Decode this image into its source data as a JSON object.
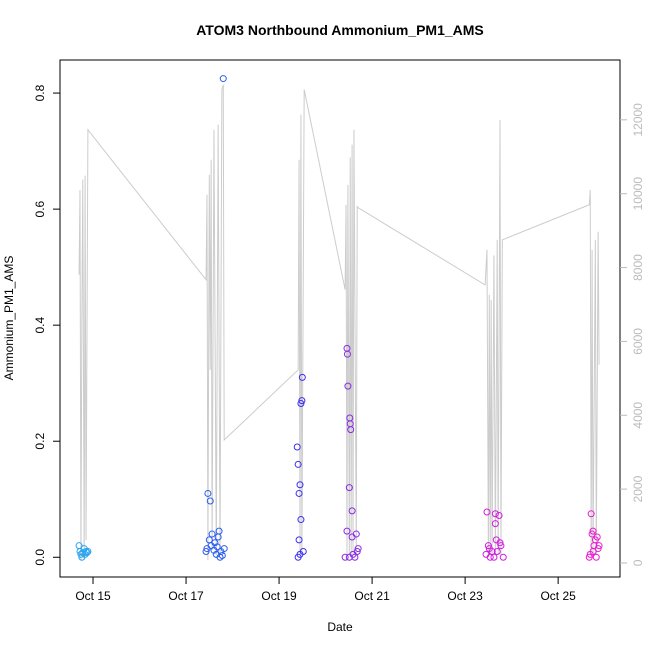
{
  "chart_data": {
    "type": "scatter",
    "title": "ATOM3 Northbound Ammonium_PM1_AMS",
    "xlabel": "Date",
    "ylabel": "Ammonium_PM1_AMS",
    "xlim": [
      14.29,
      26.33
    ],
    "xticks": [
      {
        "value": 15,
        "label": "Oct 15"
      },
      {
        "value": 17,
        "label": "Oct 17"
      },
      {
        "value": 19,
        "label": "Oct 19"
      },
      {
        "value": 21,
        "label": "Oct 21"
      },
      {
        "value": 23,
        "label": "Oct 23"
      },
      {
        "value": 25,
        "label": "Oct 25"
      }
    ],
    "ylim": [
      -0.034,
      0.857
    ],
    "yticks": [
      {
        "value": 0,
        "label": "0.0"
      },
      0.2,
      0.4,
      0.6,
      0.8
    ],
    "y2lim": [
      -380,
      13620
    ],
    "y2ticks": [
      0,
      2000,
      4000,
      6000,
      8000,
      10000,
      12000
    ],
    "y2color": "#bbbbbb",
    "series": [
      {
        "color": "#29a3f0",
        "x": [
          14.7,
          14.72,
          14.74,
          14.76,
          14.78,
          14.81,
          14.83,
          14.85,
          14.87,
          14.89
        ],
        "values": [
          0.02,
          0.01,
          0.005,
          0.0,
          0.008,
          0.015,
          0.005,
          0.01,
          0.008,
          0.01
        ]
      },
      {
        "color": "#2b5cf0",
        "x": [
          17.47,
          17.52,
          17.8,
          17.43,
          17.45,
          17.5,
          17.54,
          17.56,
          17.6,
          17.62,
          17.65,
          17.67,
          17.69,
          17.71,
          17.73,
          17.75,
          17.78,
          17.82
        ],
        "values": [
          0.11,
          0.097,
          0.825,
          0.01,
          0.015,
          0.03,
          0.02,
          0.04,
          0.012,
          0.025,
          0.005,
          0.018,
          0.035,
          0.045,
          0.0,
          0.01,
          0.003,
          0.015
        ]
      },
      {
        "color": "#3b2ff0",
        "x": [
          19.39,
          19.41,
          19.43,
          19.45,
          19.47,
          19.49,
          19.5,
          19.47,
          19.43,
          19.41,
          19.45,
          19.52
        ],
        "values": [
          0.19,
          0.16,
          0.11,
          0.125,
          0.265,
          0.27,
          0.31,
          0.065,
          0.03,
          0.0,
          0.005,
          0.01
        ]
      },
      {
        "color": "#8a2be2",
        "x": [
          20.46,
          20.47,
          20.48,
          20.52,
          20.53,
          20.54,
          20.51,
          20.57,
          20.46,
          20.57,
          20.66,
          20.42,
          20.51,
          20.59,
          20.68,
          20.7,
          20.63
        ],
        "values": [
          0.36,
          0.35,
          0.295,
          0.24,
          0.23,
          0.22,
          0.12,
          0.08,
          0.045,
          0.035,
          0.04,
          0.0,
          0.0,
          0.005,
          0.01,
          0.015,
          0.0
        ]
      },
      {
        "color": "#d21ee0",
        "x": [
          23.47,
          23.65,
          23.73,
          23.65,
          23.67,
          23.75,
          23.77,
          23.52,
          23.58,
          23.45,
          23.54,
          23.62,
          23.69,
          23.82,
          23.5
        ],
        "values": [
          0.078,
          0.075,
          0.072,
          0.058,
          0.03,
          0.025,
          0.02,
          0.015,
          0.01,
          0.005,
          0.0,
          0.0,
          0.01,
          0.0,
          0.02
        ]
      },
      {
        "color": "#e81ed0",
        "x": [
          25.71,
          25.75,
          25.73,
          25.84,
          25.8,
          25.77,
          25.86,
          25.75,
          25.69,
          25.67,
          25.82,
          25.88
        ],
        "values": [
          0.075,
          0.045,
          0.04,
          0.035,
          0.03,
          0.02,
          0.015,
          0.01,
          0.005,
          0.0,
          0.0,
          0.02
        ]
      },
      {
        "type": "line",
        "axis": "y2",
        "color": "#cccccc",
        "x": [
          14.7,
          14.72,
          14.74,
          14.76,
          14.78,
          14.81,
          14.83,
          14.85,
          14.89,
          17.43,
          17.45,
          17.47,
          17.5,
          17.52,
          17.54,
          17.56,
          17.6,
          17.65,
          17.69,
          17.73,
          17.77,
          17.8,
          17.82,
          19.41,
          19.43,
          19.45,
          19.47,
          19.49,
          19.54,
          20.42,
          20.44,
          20.46,
          20.48,
          20.51,
          20.53,
          20.55,
          20.57,
          20.59,
          20.61,
          20.66,
          20.68,
          20.7,
          23.43,
          23.47,
          23.5,
          23.52,
          23.54,
          23.56,
          23.58,
          23.62,
          23.65,
          23.69,
          23.71,
          23.75,
          23.77,
          23.8,
          25.67,
          25.69,
          25.71,
          25.73,
          25.75,
          25.8,
          25.82,
          25.86,
          25.88
        ],
        "values": [
          7800,
          10100,
          80,
          6580,
          10380,
          80,
          10490,
          620,
          11730,
          7670,
          9970,
          80,
          10510,
          5230,
          10920,
          350,
          11730,
          220,
          11870,
          220,
          12820,
          12950,
          3330,
          5230,
          10920,
          220,
          12140,
          220,
          12820,
          7400,
          9700,
          220,
          10240,
          220,
          10980,
          220,
          11330,
          220,
          11730,
          220,
          9650,
          9620,
          7530,
          8480,
          220,
          7260,
          220,
          7120,
          220,
          8330,
          220,
          8750,
          220,
          12000,
          220,
          8750,
          9700,
          10100,
          220,
          8480,
          220,
          8750,
          220,
          8970,
          5370
        ]
      }
    ]
  }
}
